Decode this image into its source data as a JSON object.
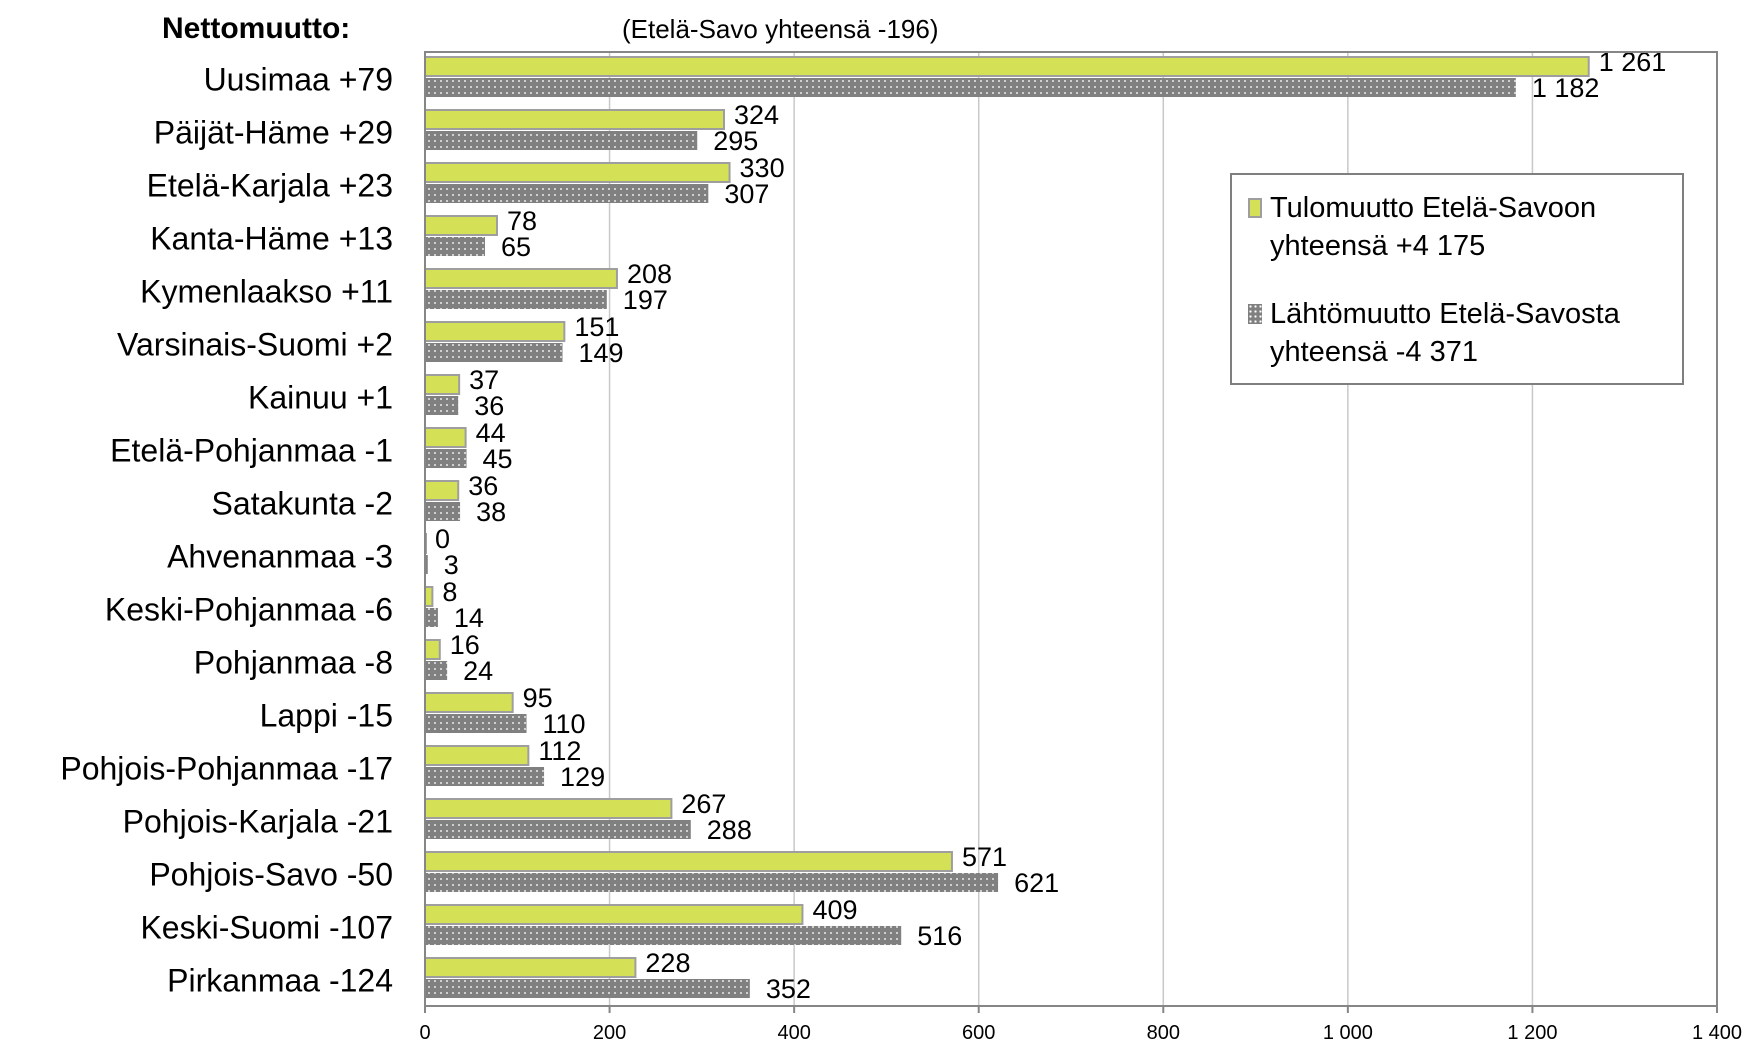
{
  "chart_data": {
    "type": "bar",
    "orientation": "horizontal",
    "heading": "Nettomuutto:",
    "note": "(Etelä-Savo yhteensä -196)",
    "categories": [
      "Uusimaa",
      "Päijät-Häme",
      "Etelä-Karjala",
      "Kanta-Häme",
      "Kymenlaakso",
      "Varsinais-Suomi",
      "Kainuu",
      "Etelä-Pohjanmaa",
      "Satakunta",
      "Ahvenanmaa",
      "Keski-Pohjanmaa",
      "Pohjanmaa",
      "Lappi",
      "Pohjois-Pohjanmaa",
      "Pohjois-Karjala",
      "Pohjois-Savo",
      "Keski-Suomi",
      "Pirkanmaa"
    ],
    "net_labels": [
      "+79",
      "+29",
      "+23",
      "+13",
      "+11",
      "+2",
      "+1",
      "-1",
      "-2",
      "-3",
      "-6",
      "-8",
      "-15",
      "-17",
      "-21",
      "-50",
      "-107",
      "-124"
    ],
    "series": [
      {
        "name": "Tulomuutto Etelä-Savoon yhteensä +4 175",
        "legend_label": "Tulomuutto Etelä-Savoon\nyhteensä +4 175",
        "values": [
          1261,
          324,
          330,
          78,
          208,
          151,
          37,
          44,
          36,
          0,
          8,
          16,
          95,
          112,
          267,
          571,
          409,
          228
        ],
        "labels": [
          "1 261",
          "324",
          "330",
          "78",
          "208",
          "151",
          "37",
          "44",
          "36",
          "0",
          "8",
          "16",
          "95",
          "112",
          "267",
          "571",
          "409",
          "228"
        ]
      },
      {
        "name": "Lähtömuutto Etelä-Savosta yhteensä -4 371",
        "legend_label": "Lähtömuutto Etelä-Savosta\nyhteensä -4 371",
        "values": [
          1182,
          295,
          307,
          65,
          197,
          149,
          36,
          45,
          38,
          3,
          14,
          24,
          110,
          129,
          288,
          621,
          516,
          352
        ],
        "labels": [
          "1 182",
          "295",
          "307",
          "65",
          "197",
          "149",
          "36",
          "45",
          "38",
          "3",
          "14",
          "24",
          "110",
          "129",
          "288",
          "621",
          "516",
          "352"
        ]
      }
    ],
    "x_ticks": [
      0,
      200,
      400,
      600,
      800,
      1000,
      1200,
      1400
    ],
    "x_tick_labels": [
      "0",
      "200",
      "400",
      "600",
      "800",
      "1 000",
      "1 200",
      "1 400"
    ],
    "xlim": [
      0,
      1400
    ],
    "grid": "vertical",
    "legend_position": "right",
    "colors": {
      "inflow": "#d4e157",
      "inflow_border": "#9e9e9e",
      "outflow": "#808080",
      "grid": "#c8c8c8",
      "axis": "#868686"
    }
  }
}
